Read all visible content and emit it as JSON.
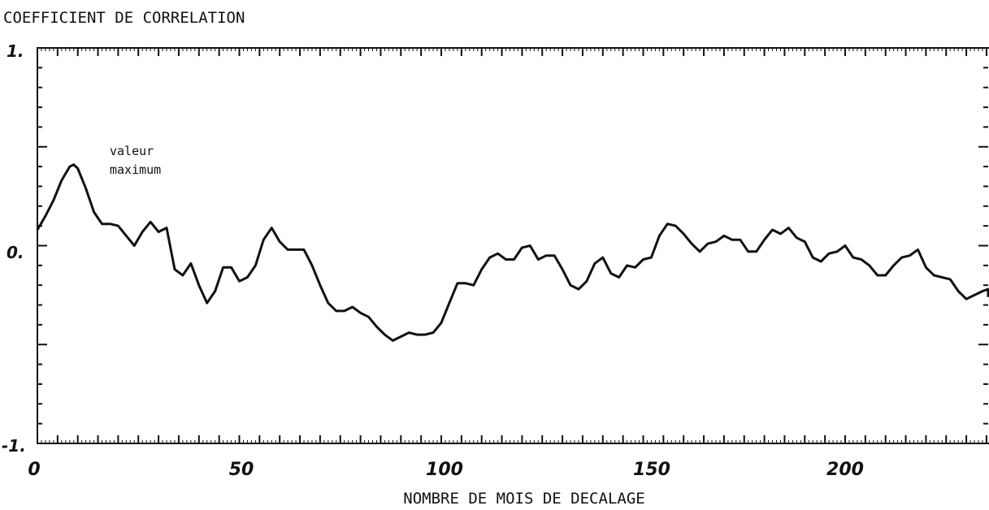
{
  "chart_data": {
    "type": "line",
    "title": "COEFFICIENT  DE  CORRELATION",
    "xlabel": "NOMBRE DE MOIS DE DECALAGE",
    "ylabel": "",
    "xlim": [
      0,
      240
    ],
    "ylim": [
      -1,
      1
    ],
    "x_ticks": [
      0,
      50,
      100,
      150,
      200
    ],
    "x_tick_labels": [
      "0",
      "50",
      "100",
      "150",
      "200"
    ],
    "y_ticks": [
      -1,
      0,
      1
    ],
    "y_tick_labels": [
      "-1.",
      "0.",
      "1."
    ],
    "grid": false,
    "annotation": {
      "lines": [
        "valeur",
        "maximum"
      ],
      "x": 18,
      "y": 0.96
    },
    "series": [
      {
        "x": [
          0,
          2,
          4,
          6,
          8,
          9,
          10,
          12,
          14,
          16,
          18,
          20,
          22,
          24,
          26,
          28,
          30,
          32,
          34,
          36,
          38,
          40,
          42,
          44,
          46,
          48,
          50,
          52,
          54,
          56,
          58,
          60,
          62,
          64,
          66,
          68,
          70,
          72,
          74,
          76,
          78,
          80,
          82,
          84,
          86,
          88,
          90,
          92,
          94,
          96,
          98,
          100,
          102,
          104,
          106,
          108,
          110,
          112,
          114,
          116,
          118,
          120,
          122,
          124,
          126,
          128,
          130,
          132,
          134,
          136,
          138,
          140,
          142,
          144,
          146,
          148,
          150,
          152,
          154,
          156,
          158,
          160,
          162,
          164,
          166,
          168,
          170,
          172,
          174,
          176,
          178,
          180,
          182,
          184,
          186,
          188,
          190,
          192,
          194,
          196,
          198,
          200,
          202,
          204,
          206,
          208,
          210,
          212,
          214,
          216,
          218,
          220,
          222,
          224,
          226,
          228,
          230,
          232,
          234,
          236,
          238,
          240
        ],
        "y": [
          0.08,
          0.15,
          0.23,
          0.33,
          0.4,
          0.41,
          0.39,
          0.29,
          0.17,
          0.11,
          0.11,
          0.1,
          0.05,
          0.0,
          0.07,
          0.12,
          0.07,
          0.09,
          -0.12,
          -0.15,
          -0.09,
          -0.2,
          -0.29,
          -0.23,
          -0.11,
          -0.11,
          -0.18,
          -0.16,
          -0.1,
          0.03,
          0.09,
          0.02,
          -0.02,
          -0.02,
          -0.02,
          -0.1,
          -0.2,
          -0.29,
          -0.33,
          -0.33,
          -0.31,
          -0.34,
          -0.36,
          -0.41,
          -0.45,
          -0.48,
          -0.46,
          -0.44,
          -0.45,
          -0.45,
          -0.44,
          -0.39,
          -0.29,
          -0.19,
          -0.19,
          -0.2,
          -0.12,
          -0.06,
          -0.04,
          -0.07,
          -0.07,
          -0.01,
          0.0,
          -0.07,
          -0.05,
          -0.05,
          -0.12,
          -0.2,
          -0.22,
          -0.18,
          -0.09,
          -0.06,
          -0.14,
          -0.16,
          -0.1,
          -0.11,
          -0.07,
          -0.06,
          0.05,
          0.11,
          0.1,
          0.06,
          0.01,
          -0.03,
          0.01,
          0.02,
          0.05,
          0.03,
          0.03,
          -0.03,
          -0.03,
          0.03,
          0.08,
          0.06,
          0.09,
          0.04,
          0.02,
          -0.06,
          -0.08,
          -0.04,
          -0.03,
          0.0,
          -0.06,
          -0.07,
          -0.1,
          -0.15,
          -0.15,
          -0.1,
          -0.06,
          -0.05,
          -0.02,
          -0.11,
          -0.15,
          -0.16,
          -0.17,
          -0.23,
          -0.27,
          -0.25,
          -0.23,
          -0.22,
          -0.24,
          -0.26
        ]
      }
    ]
  }
}
